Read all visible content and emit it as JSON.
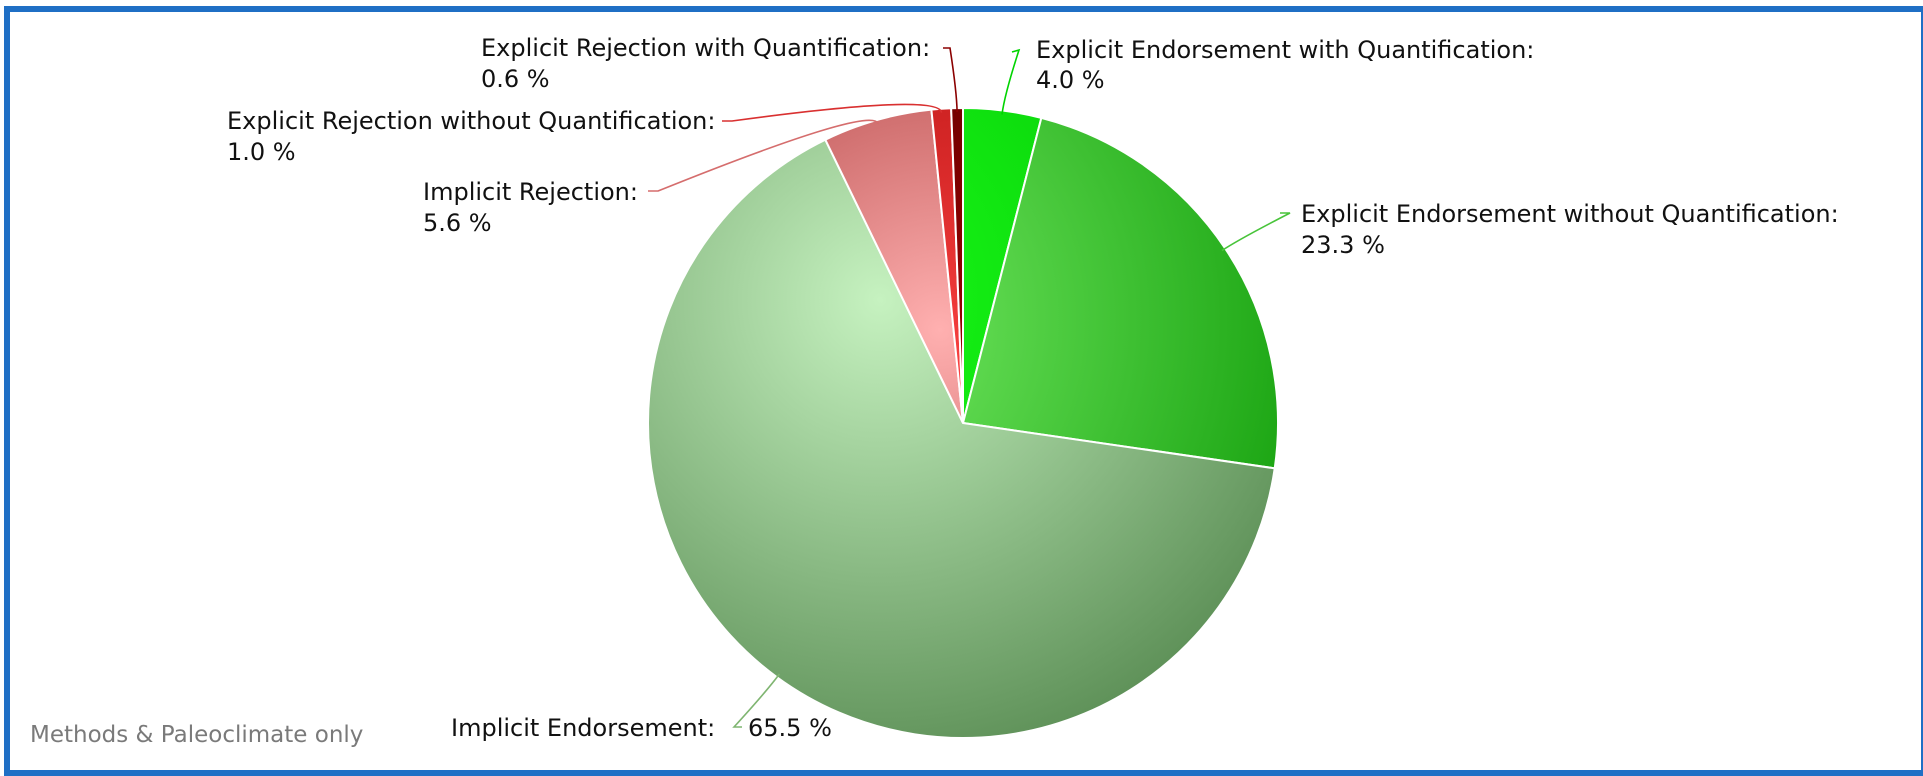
{
  "chart_data": {
    "type": "pie",
    "categories": [
      "Explicit Endorsement with Quantification",
      "Explicit Endorsement without Quantification",
      "Implicit Endorsement",
      "Implicit Rejection",
      "Explicit Rejection without Quantification",
      "Explicit Rejection with Quantification"
    ],
    "values": [
      4.0,
      23.3,
      65.5,
      5.6,
      1.0,
      0.6
    ],
    "labels": [
      "Explicit Endorsement with Quantification:",
      "Explicit Endorsement without Quantification:",
      "Implicit Endorsement:",
      "Implicit Rejection:",
      "Explicit Rejection without Quantification:",
      "Explicit Rejection with Quantification:"
    ],
    "value_labels": [
      "4.0 %",
      "23.3 %",
      "65.5 %",
      "5.6 %",
      "1.0 %",
      "0.6 %"
    ],
    "colors": [
      "#00d400",
      "#48c43a",
      "#7fb571",
      "#d56d6d",
      "#d93030",
      "#8b0000"
    ],
    "footnote": "Methods & Paleoclimate only"
  }
}
